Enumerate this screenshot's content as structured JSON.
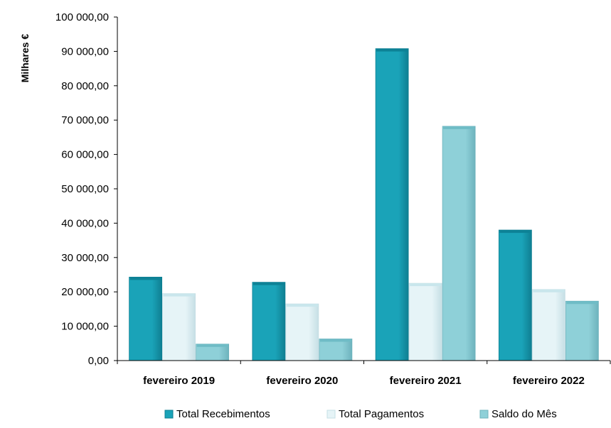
{
  "chart_data": {
    "type": "bar",
    "ylabel": "Milhares €",
    "ylim": [
      0,
      100000
    ],
    "ytick_step": 10000,
    "ytick_labels": [
      "0,00",
      "10 000,00",
      "20 000,00",
      "30 000,00",
      "40 000,00",
      "50 000,00",
      "60 000,00",
      "70 000,00",
      "80 000,00",
      "90 000,00",
      "100 000,00"
    ],
    "categories": [
      "fevereiro  2019",
      "fevereiro  2020",
      "fevereiro  2021",
      "fevereiro 2022"
    ],
    "series": [
      {
        "name": "Total Recebimentos",
        "values": [
          24300,
          22800,
          90800,
          38000
        ],
        "color": "#1aa3b8",
        "top_color": "#0d8296",
        "side_color": "#0f7f92"
      },
      {
        "name": "Total Pagamentos",
        "values": [
          19500,
          16500,
          22500,
          20700
        ],
        "color": "#e6f4f7",
        "top_color": "#c9e6ec",
        "side_color": "#c6dfe5"
      },
      {
        "name": "Saldo do Mês",
        "values": [
          4800,
          6300,
          68200,
          17300
        ],
        "color": "#8ed0d8",
        "top_color": "#6fbcc6",
        "side_color": "#6eb3bd"
      }
    ],
    "grid": false,
    "legend_position": "bottom"
  }
}
